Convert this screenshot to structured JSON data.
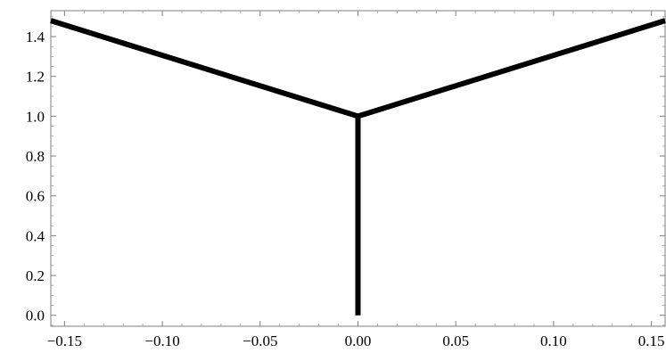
{
  "chart_data": {
    "type": "line",
    "title": "",
    "xlabel": "",
    "ylabel": "",
    "xlim": [
      -0.157,
      0.157
    ],
    "ylim": [
      -0.055,
      1.53
    ],
    "x_ticks": [
      {
        "value": -0.15,
        "label": "−0.15"
      },
      {
        "value": -0.1,
        "label": "−0.10"
      },
      {
        "value": -0.05,
        "label": "−0.05"
      },
      {
        "value": 0.0,
        "label": "0.00"
      },
      {
        "value": 0.05,
        "label": "0.05"
      },
      {
        "value": 0.1,
        "label": "0.10"
      },
      {
        "value": 0.15,
        "label": "0.15"
      }
    ],
    "y_ticks": [
      {
        "value": 0.0,
        "label": "0.0"
      },
      {
        "value": 0.2,
        "label": "0.2"
      },
      {
        "value": 0.4,
        "label": "0.4"
      },
      {
        "value": 0.6,
        "label": "0.6"
      },
      {
        "value": 0.8,
        "label": "0.8"
      },
      {
        "value": 1.0,
        "label": "1.0"
      },
      {
        "value": 1.2,
        "label": "1.2"
      },
      {
        "value": 1.4,
        "label": "1.4"
      }
    ],
    "x_minor_step": 0.01,
    "y_minor_step": 0.05,
    "grid": false,
    "legend": "none",
    "color": "#000000",
    "series": [
      {
        "x": [
          0.0,
          0.0
        ],
        "y": [
          0.0,
          1.0
        ]
      },
      {
        "x": [
          -0.157,
          0.0
        ],
        "y": [
          1.48,
          1.0
        ]
      },
      {
        "x": [
          0.0,
          0.157
        ],
        "y": [
          1.0,
          1.48
        ]
      }
    ]
  }
}
